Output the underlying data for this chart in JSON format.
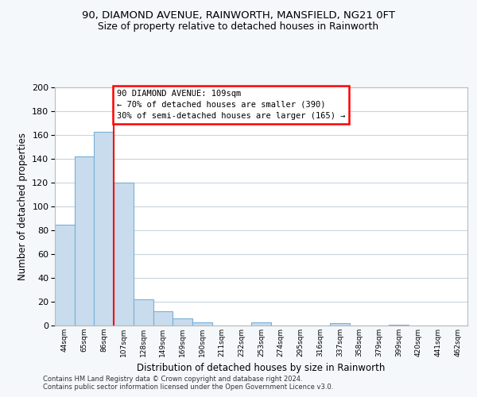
{
  "title1": "90, DIAMOND AVENUE, RAINWORTH, MANSFIELD, NG21 0FT",
  "title2": "Size of property relative to detached houses in Rainworth",
  "xlabel": "Distribution of detached houses by size in Rainworth",
  "ylabel": "Number of detached properties",
  "bar_labels": [
    "44sqm",
    "65sqm",
    "86sqm",
    "107sqm",
    "128sqm",
    "149sqm",
    "169sqm",
    "190sqm",
    "211sqm",
    "232sqm",
    "253sqm",
    "274sqm",
    "295sqm",
    "316sqm",
    "337sqm",
    "358sqm",
    "379sqm",
    "399sqm",
    "420sqm",
    "441sqm",
    "462sqm"
  ],
  "bar_values": [
    85,
    142,
    163,
    120,
    22,
    12,
    6,
    3,
    0,
    0,
    3,
    0,
    0,
    0,
    2,
    0,
    0,
    1,
    0,
    0,
    0
  ],
  "bar_color": "#c8dcee",
  "bar_edgecolor": "#7ab0d4",
  "bar_linewidth": 0.8,
  "red_line_bin": 3,
  "annotation_line1": "90 DIAMOND AVENUE: 109sqm",
  "annotation_line2": "← 70% of detached houses are smaller (390)",
  "annotation_line3": "30% of semi-detached houses are larger (165) →",
  "ylim_max": 200,
  "yticks": [
    0,
    20,
    40,
    60,
    80,
    100,
    120,
    140,
    160,
    180,
    200
  ],
  "footer1": "Contains HM Land Registry data © Crown copyright and database right 2024.",
  "footer2": "Contains public sector information licensed under the Open Government Licence v3.0.",
  "bg_color": "#f5f8fb",
  "plot_bg_color": "#ffffff",
  "grid_color": "#c8d4de"
}
